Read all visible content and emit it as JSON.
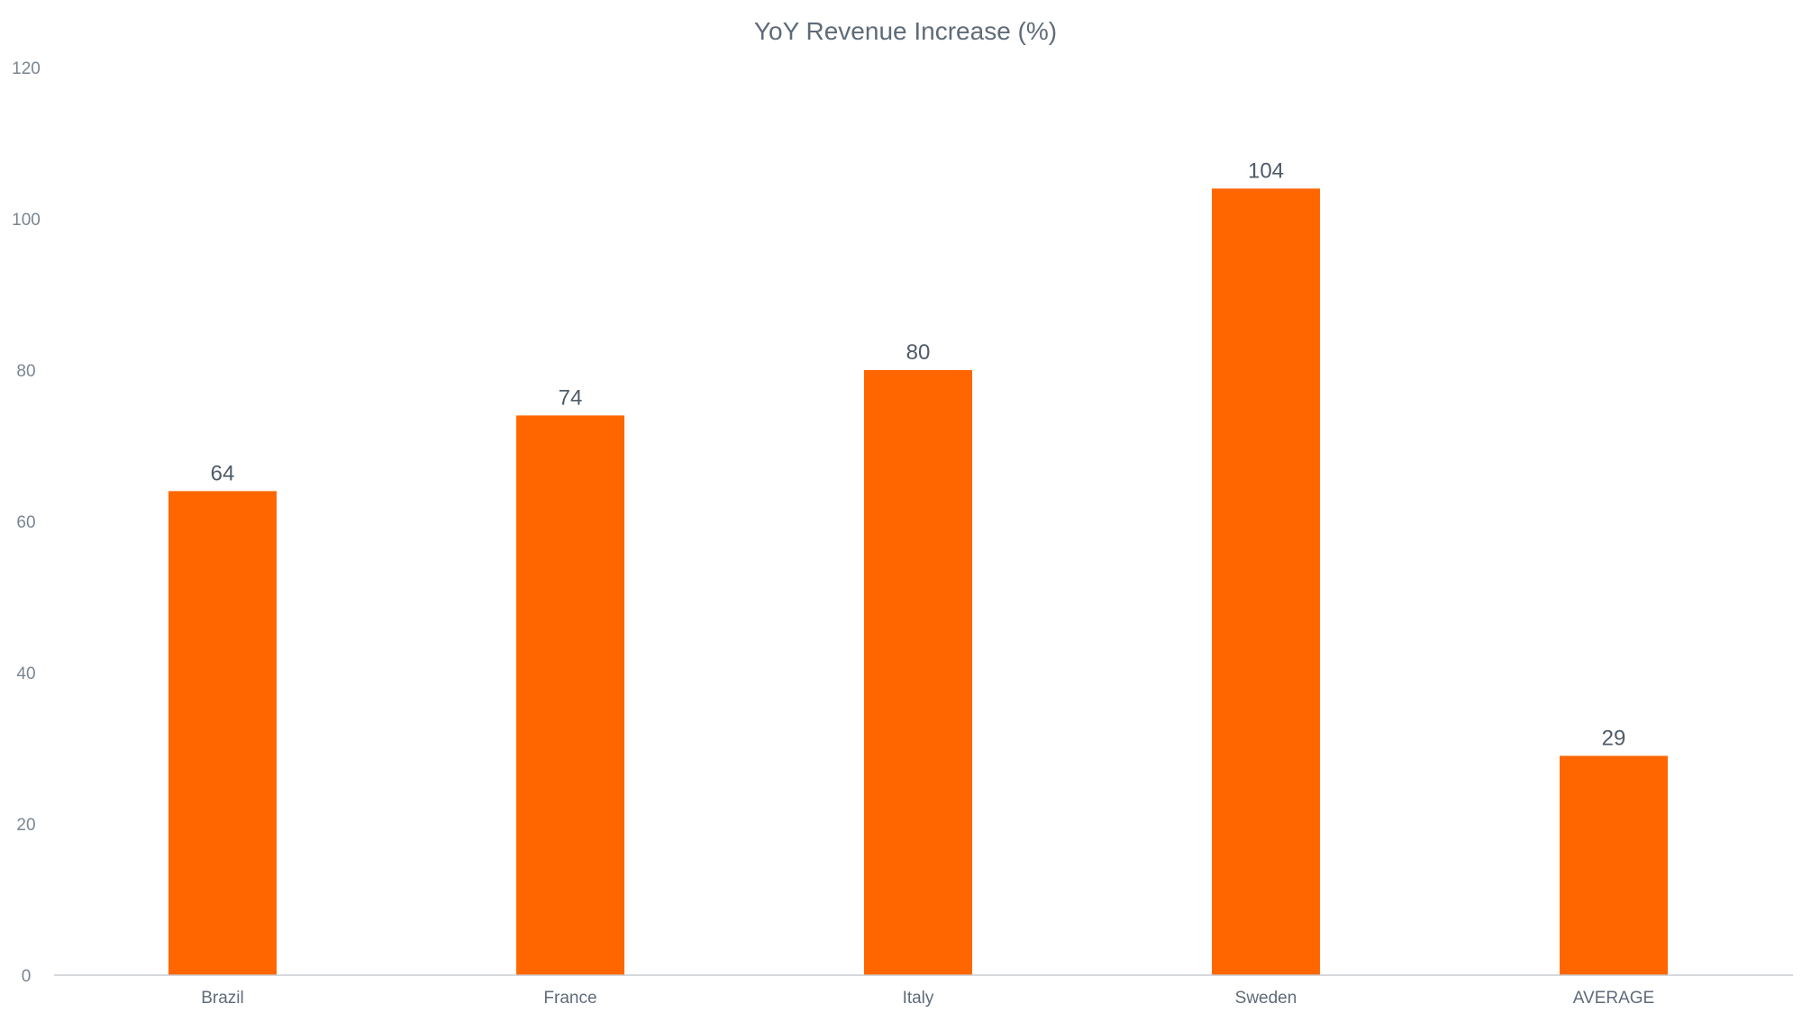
{
  "chart_data": {
    "type": "bar",
    "title": "YoY Revenue Increase (%)",
    "xlabel": "",
    "ylabel": "",
    "categories": [
      "Brazil",
      "France",
      "Italy",
      "Sweden",
      "AVERAGE"
    ],
    "values": [
      64,
      74,
      80,
      104,
      29
    ],
    "data_labels": [
      "64",
      "74",
      "80",
      "104",
      "29"
    ],
    "ylim": [
      0,
      120
    ],
    "yticks": [
      0,
      20,
      40,
      60,
      80,
      100,
      120
    ],
    "ytick_labels": [
      "0",
      "20",
      "40",
      "60",
      "80",
      "100",
      "120"
    ],
    "grid": false,
    "legend": "none",
    "colors": {
      "bar": "#ff6600",
      "text": "#5f6b78",
      "axis": "#c8ccd0"
    }
  }
}
